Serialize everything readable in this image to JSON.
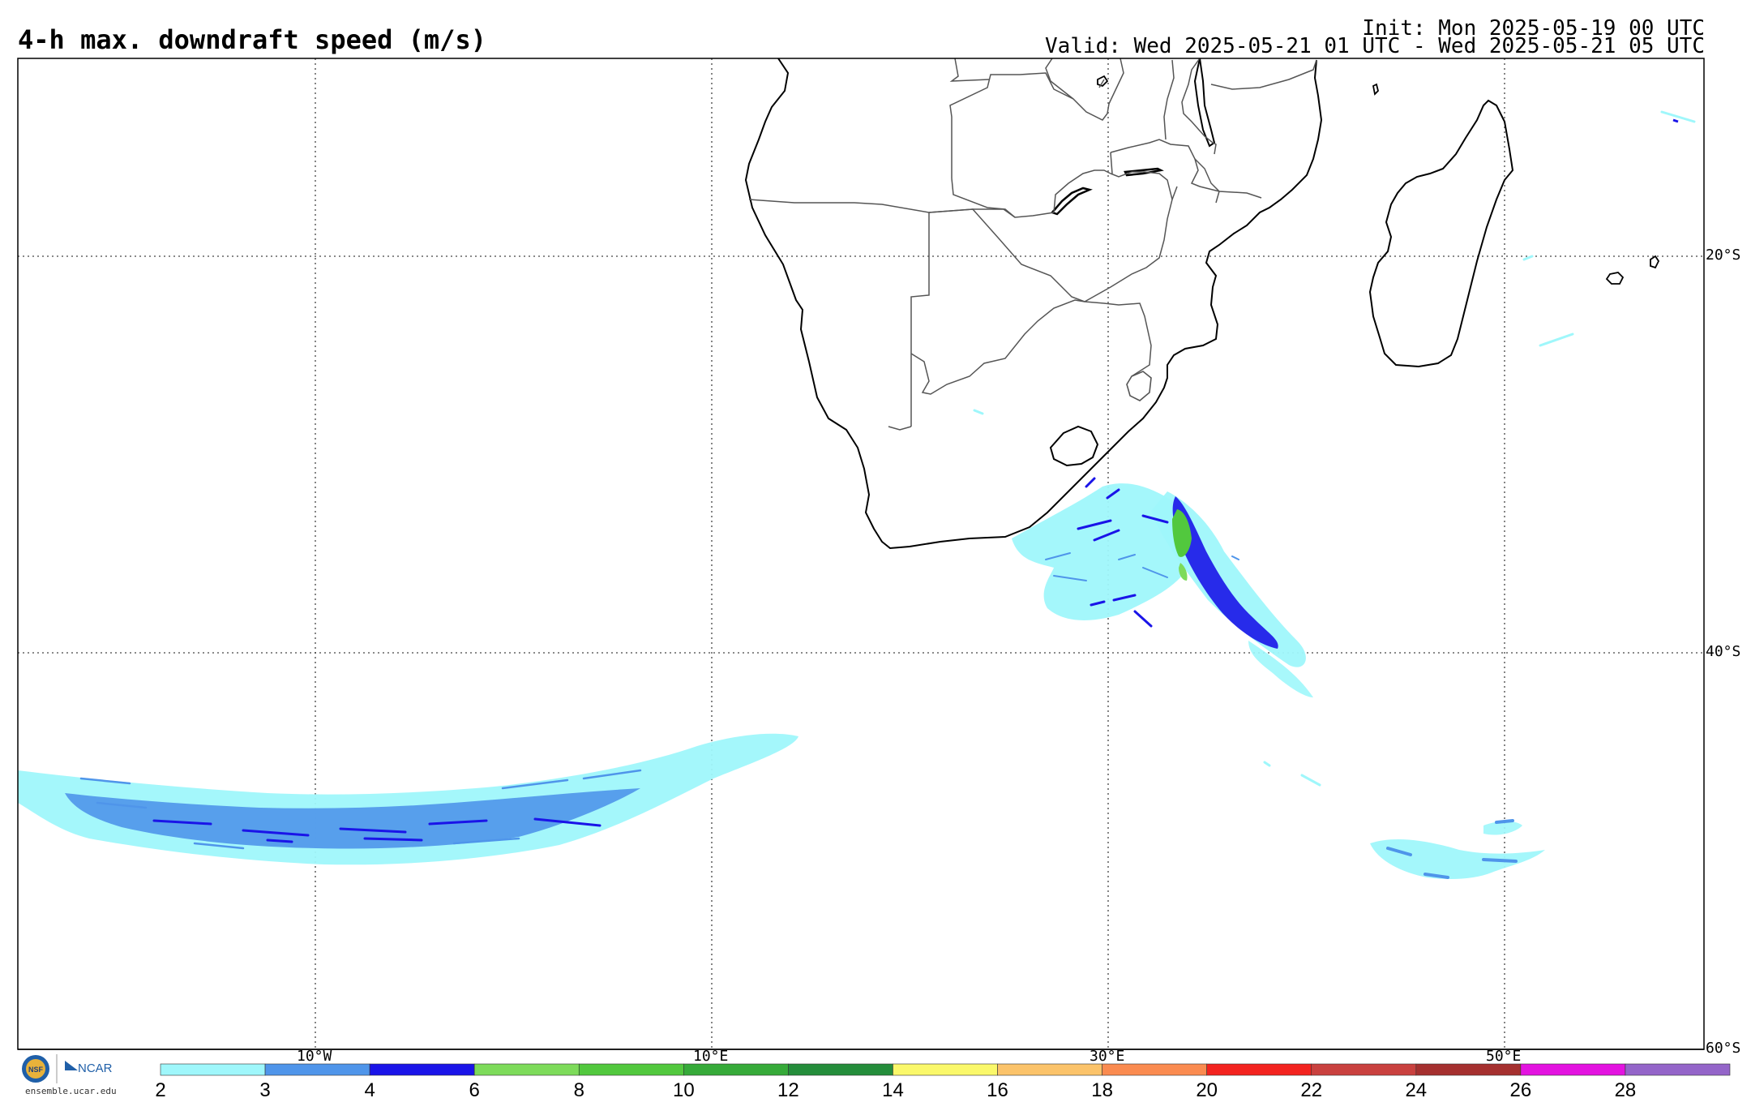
{
  "header": {
    "title": "4-h max. downdraft speed (m/s)",
    "init": "Init: Mon 2025-05-19 00 UTC",
    "valid": "Valid: Wed 2025-05-21 01 UTC - Wed 2025-05-21 05 UTC"
  },
  "map": {
    "lon_labels": [
      "10°W",
      "10°E",
      "30°E",
      "50°E"
    ],
    "lat_labels": [
      "20°S",
      "40°S",
      "60°S"
    ],
    "frame_color": "#000000",
    "coast_color": "#000000",
    "border_color": "#555555",
    "grid_style": "dotted"
  },
  "colorbar": {
    "ticks": [
      "2",
      "3",
      "4",
      "6",
      "8",
      "10",
      "12",
      "14",
      "16",
      "18",
      "20",
      "22",
      "24",
      "26",
      "28"
    ],
    "colors": [
      "#9ff7fb",
      "#4f95ea",
      "#1a14e8",
      "#7ddb5a",
      "#52c83e",
      "#36aa39",
      "#248d3b",
      "#faf86a",
      "#fbc36a",
      "#fa8b50",
      "#f3231f",
      "#c9413f",
      "#a5302f",
      "#e313e0",
      "#9465c9"
    ]
  },
  "logos": {
    "nsf_text": "NSF",
    "ncar_text": "NCAR",
    "url": "ensemble.ucar.edu"
  }
}
